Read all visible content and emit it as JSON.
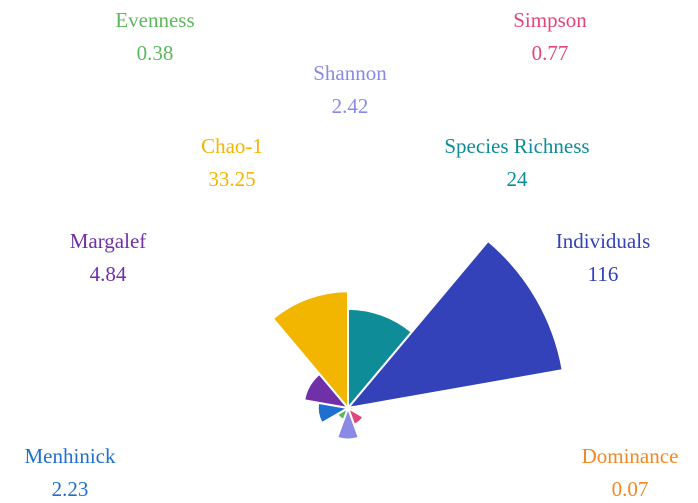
{
  "chart_data": {
    "type": "polar-area",
    "categories": [
      "Species Richness",
      "Individuals",
      "Dominance",
      "Simpson",
      "Shannon",
      "Evenness",
      "Menhinick",
      "Margalef",
      "Chao-1"
    ],
    "values": [
      24,
      116,
      0.07,
      0.77,
      2.42,
      0.38,
      2.23,
      4.84,
      33.25
    ],
    "colors": [
      "#0e8c98",
      "#3342b8",
      "#f08a24",
      "#e0457b",
      "#8a8ae6",
      "#5cb85c",
      "#1f6fd0",
      "#7030a8",
      "#f2b600"
    ]
  }
}
